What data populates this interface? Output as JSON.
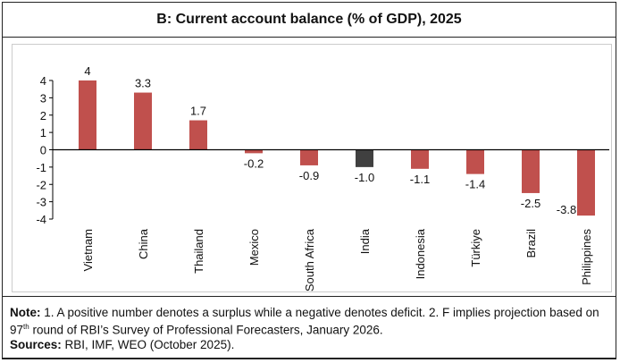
{
  "chart_data": {
    "type": "bar",
    "title": "B: Current account balance (% of GDP), 2025",
    "categories": [
      "Vietnam",
      "China",
      "Thailand",
      "Mexico",
      "South Africa",
      "India",
      "Indonesia",
      "Türkiye",
      "Brazil",
      "Philippines"
    ],
    "values": [
      4,
      3.3,
      1.7,
      -0.2,
      -0.9,
      -1.0,
      -1.1,
      -1.4,
      -2.5,
      -3.8
    ],
    "data_labels": [
      "4",
      "3.3",
      "1.7",
      "-0.2",
      "-0.9",
      "-1.0",
      "-1.1",
      "-1.4",
      "-2.5",
      "-3.8"
    ],
    "ylim": [
      -4,
      4
    ],
    "yticks": [
      "4",
      "3",
      "2",
      "1",
      "0",
      "-1",
      "-2",
      "-3",
      "-4"
    ],
    "grid": false,
    "colors": {
      "default": "#C0504D",
      "highlight": "#404040"
    },
    "highlight_category": "India"
  },
  "note": {
    "note_label": "Note:",
    "note_text_1": " 1. A positive number denotes a surplus while a negative denotes deficit. 2. F implies projection based on 97",
    "note_sup": "th",
    "note_text_2": " round of RBI’s Survey of Professional Forecasters, January 2026.",
    "sources_label": "Sources:",
    "sources_text": " RBI, IMF, WEO (October 2025)."
  }
}
